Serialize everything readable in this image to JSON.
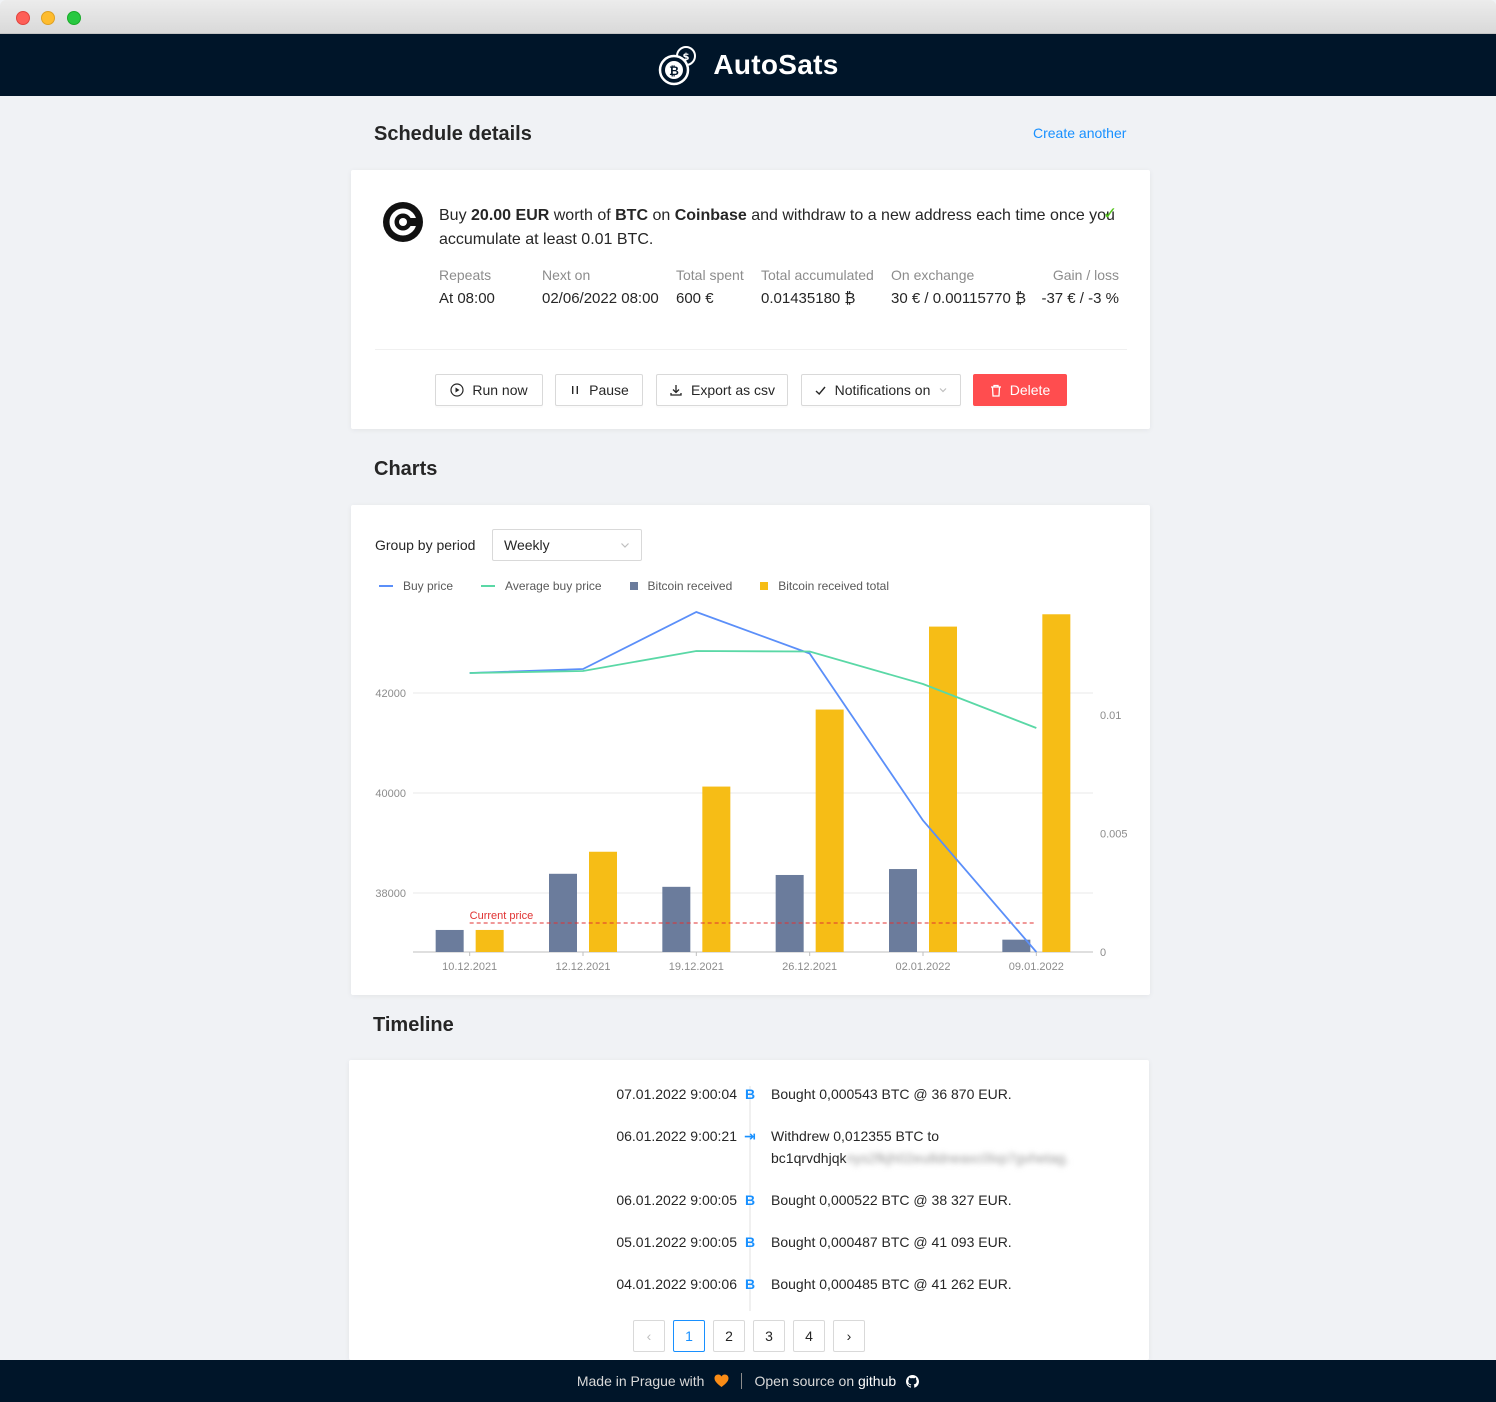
{
  "app": {
    "name": "AutoSats"
  },
  "schedule": {
    "title": "Schedule details",
    "create_another": "Create another",
    "desc_buy": "Buy",
    "amount": "20.00 EUR",
    "desc_worth_of": "worth of",
    "asset": "BTC",
    "desc_on": "on",
    "exchange": "Coinbase",
    "desc_rest": "and withdraw to a new address each time once you accumulate at least 0.01 BTC.",
    "stats": [
      {
        "label": "Repeats",
        "value": "At 08:00"
      },
      {
        "label": "Next on",
        "value": "02/06/2022 08:00"
      },
      {
        "label": "Total spent",
        "value": "600 €"
      },
      {
        "label": "Total accumulated",
        "value": "0.01435180 ₿"
      },
      {
        "label": "On exchange",
        "value": "30 € / 0.00115770 ₿"
      },
      {
        "label": "Gain / loss",
        "value": "-37 € / -3 %"
      }
    ],
    "buttons": {
      "run_now": "Run now",
      "pause": "Pause",
      "export": "Export as csv",
      "notifications": "Notifications on",
      "delete": "Delete"
    }
  },
  "charts": {
    "title": "Charts",
    "group_by_label": "Group by period",
    "group_by_value": "Weekly",
    "current_price_label": "Current price",
    "chart_data": {
      "type": "bar",
      "categories": [
        "10.12.2021",
        "12.12.2021",
        "19.12.2021",
        "26.12.2021",
        "02.01.2022",
        "09.01.2022"
      ],
      "series": [
        {
          "name": "Buy price",
          "kind": "line",
          "axis": "left",
          "color": "#5b8ff9",
          "values": [
            42400,
            42480,
            43620,
            42790,
            39450,
            36820
          ]
        },
        {
          "name": "Average buy price",
          "kind": "line",
          "axis": "left",
          "color": "#5ad8a6",
          "values": [
            42400,
            42440,
            42840,
            42830,
            42180,
            41300
          ]
        },
        {
          "name": "Bitcoin received",
          "kind": "bar",
          "axis": "right",
          "color": "#6b7c9c",
          "values": [
            0.00093,
            0.0033,
            0.00275,
            0.00325,
            0.0035,
            0.00052
          ]
        },
        {
          "name": "Bitcoin received total",
          "kind": "bar",
          "axis": "right",
          "color": "#f6bd16",
          "values": [
            0.00093,
            0.00423,
            0.00698,
            0.01023,
            0.01373,
            0.01425
          ]
        }
      ],
      "yleft_ticks": [
        38000,
        40000,
        42000
      ],
      "yright_ticks": [
        0,
        0.005,
        0.01
      ],
      "current_price": 37400,
      "legend_position": "top-left",
      "grid": true
    }
  },
  "timeline": {
    "title": "Timeline",
    "entries": [
      {
        "time": "07.01.2022 9:00:04",
        "icon": "bitcoin-icon",
        "glyph": "B",
        "text": "Bought 0,000543 BTC @ 36 870 EUR."
      },
      {
        "time": "06.01.2022 9:00:21",
        "icon": "withdraw-icon",
        "glyph": "⇥",
        "text": "Withdrew 0,012355 BTC to",
        "address_visible": "bc1qrvdhjqk",
        "address_hidden": "nys2fkjh02eu8dneaxc0lxp7gvhetag."
      },
      {
        "time": "06.01.2022 9:00:05",
        "icon": "bitcoin-icon",
        "glyph": "B",
        "text": "Bought 0,000522 BTC @ 38 327 EUR."
      },
      {
        "time": "05.01.2022 9:00:05",
        "icon": "bitcoin-icon",
        "glyph": "B",
        "text": "Bought 0,000487 BTC @ 41 093 EUR."
      },
      {
        "time": "04.01.2022 9:00:06",
        "icon": "bitcoin-icon",
        "glyph": "B",
        "text": "Bought 0,000485 BTC @ 41 262 EUR."
      }
    ],
    "pages": [
      "1",
      "2",
      "3",
      "4"
    ],
    "prev": "‹",
    "next": "›",
    "current_page": "1"
  },
  "footer": {
    "made_in": "Made in Prague with",
    "open_source": "Open source on",
    "github": "github"
  }
}
